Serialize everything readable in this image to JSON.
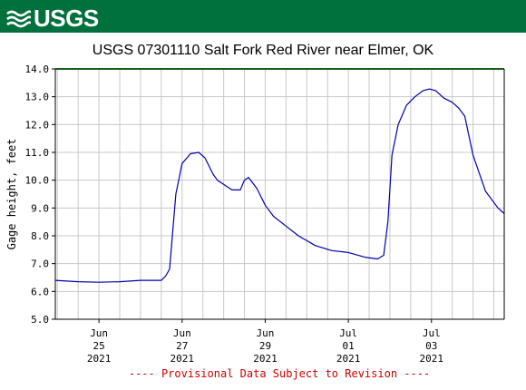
{
  "header": {
    "logo_text": "USGS",
    "banner_color": "#00703c"
  },
  "chart_data": {
    "type": "line",
    "title": "USGS 07301110 Salt Fork Red River near Elmer, OK",
    "xlabel": "",
    "ylabel": "Gage height, feet",
    "ylim": [
      5.0,
      14.0
    ],
    "yticks": [
      "5.0",
      "6.0",
      "7.0",
      "8.0",
      "9.0",
      "10.0",
      "11.0",
      "12.0",
      "13.0",
      "14.0"
    ],
    "xlim": [
      24.0,
      4.75
    ],
    "xticks": [
      {
        "day": 25,
        "lines": [
          "Jun",
          "25",
          "2021"
        ]
      },
      {
        "day": 27,
        "lines": [
          "Jun",
          "27",
          "2021"
        ]
      },
      {
        "day": 29,
        "lines": [
          "Jun",
          "29",
          "2021"
        ]
      },
      {
        "day": 31,
        "lines": [
          "Jul",
          "01",
          "2021"
        ]
      },
      {
        "day": 33,
        "lines": [
          "Jul",
          "03",
          "2021"
        ]
      }
    ],
    "grid": true,
    "line_color": "#0000aa",
    "note": "---- Provisional Data Subject to Revision ----",
    "note_color": "#cc0000",
    "series": [
      {
        "x": [
          23.95,
          24.5,
          25.0,
          25.5,
          26.0,
          26.5,
          26.6,
          26.7,
          26.85,
          27.0,
          27.2,
          27.4,
          27.55,
          27.75,
          27.85,
          28.0,
          28.2,
          28.4,
          28.5,
          28.6,
          28.8,
          29.0,
          29.2,
          29.5,
          29.8,
          30.2,
          30.6,
          31.0,
          31.4,
          31.7,
          31.85,
          31.95,
          32.05,
          32.2,
          32.4,
          32.6,
          32.8,
          32.95,
          33.1,
          33.3,
          33.5,
          33.65,
          33.8,
          34.0,
          34.3,
          34.6,
          34.75
        ],
        "y": [
          6.4,
          6.35,
          6.33,
          6.35,
          6.4,
          6.4,
          6.55,
          6.8,
          9.5,
          10.6,
          10.95,
          11.0,
          10.8,
          10.2,
          10.0,
          9.85,
          9.65,
          9.65,
          10.0,
          10.1,
          9.7,
          9.1,
          8.7,
          8.35,
          8.0,
          7.65,
          7.47,
          7.4,
          7.23,
          7.17,
          7.3,
          8.5,
          10.9,
          12.0,
          12.7,
          13.0,
          13.22,
          13.28,
          13.22,
          12.95,
          12.8,
          12.6,
          12.3,
          10.9,
          9.6,
          9.0,
          8.8
        ]
      }
    ]
  }
}
